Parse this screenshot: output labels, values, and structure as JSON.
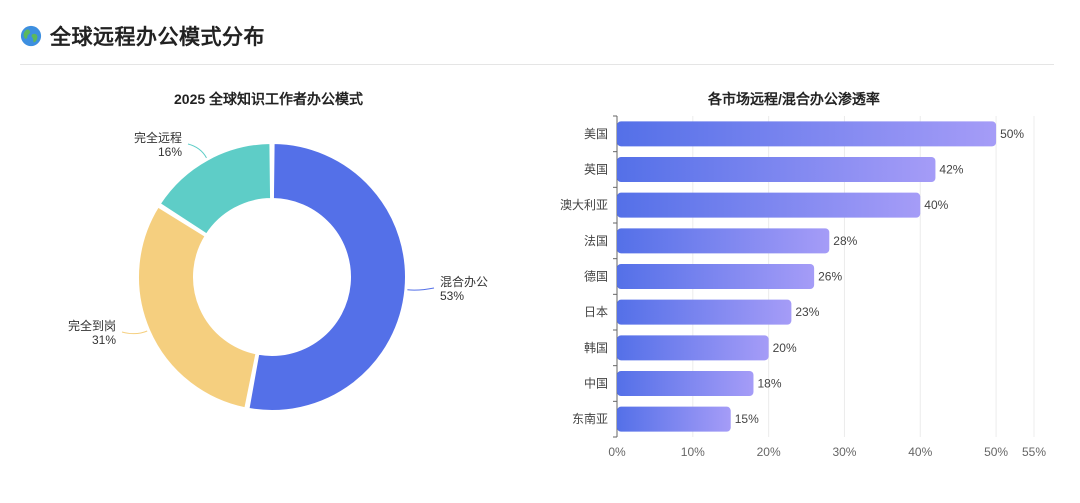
{
  "page": {
    "title": "全球远程办公模式分布",
    "icon": "globe-icon"
  },
  "chart_data": [
    {
      "type": "pie",
      "title": "2025 全球知识工作者办公模式",
      "variant": "donut",
      "series": [
        {
          "name": "混合办公",
          "value": 53,
          "label": "53%",
          "color": "#5470e8"
        },
        {
          "name": "完全到岗",
          "value": 31,
          "label": "31%",
          "color": "#f5cf7f"
        },
        {
          "name": "完全远程",
          "value": 16,
          "label": "16%",
          "color": "#5ecdc7"
        }
      ]
    },
    {
      "type": "bar",
      "orientation": "horizontal",
      "title": "各市场远程/混合办公渗透率",
      "categories": [
        "美国",
        "英国",
        "澳大利亚",
        "法国",
        "德国",
        "日本",
        "韩国",
        "中国",
        "东南亚"
      ],
      "values": [
        50,
        42,
        40,
        28,
        26,
        23,
        20,
        18,
        15
      ],
      "value_labels": [
        "50%",
        "42%",
        "40%",
        "28%",
        "26%",
        "23%",
        "20%",
        "18%",
        "15%"
      ],
      "xlim": [
        0,
        55
      ],
      "x_ticks": [
        0,
        10,
        20,
        30,
        40,
        50,
        55
      ],
      "x_tick_labels": [
        "0%",
        "10%",
        "20%",
        "30%",
        "40%",
        "50%",
        "55%"
      ],
      "grid": true,
      "gradient": [
        "#5470e8",
        "#a59cf7"
      ]
    }
  ]
}
